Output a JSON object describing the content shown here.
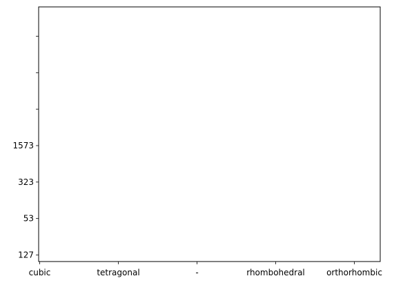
{
  "chart_data": {
    "type": "line",
    "title": "",
    "xlabel": "",
    "ylabel": "",
    "categories": [
      "cubic",
      "tetragonal",
      "-",
      "rhombohedral",
      "orthorhombic"
    ],
    "yticks": [
      "127",
      "53",
      "323",
      "1573",
      "",
      "",
      ""
    ],
    "series": [],
    "grid": false,
    "legend": "none"
  }
}
